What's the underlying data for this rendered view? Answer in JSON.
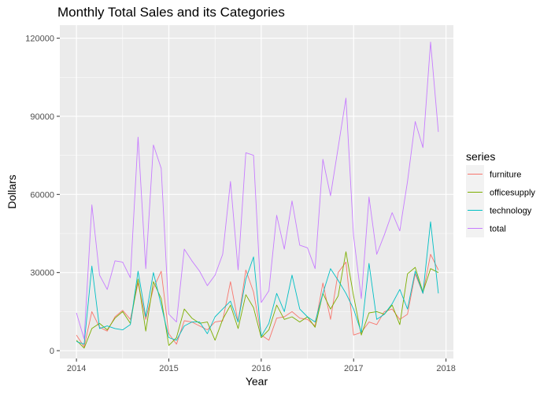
{
  "chart_data": {
    "type": "line",
    "title": "Monthly Total Sales and its Categories",
    "xlabel": "Year",
    "ylabel": "Dollars",
    "xlim": [
      2013.82,
      2018.08
    ],
    "ylim": [
      -3000,
      125000
    ],
    "x_ticks": [
      2014,
      2015,
      2016,
      2017,
      2018
    ],
    "y_ticks": [
      0,
      30000,
      60000,
      90000,
      120000
    ],
    "grid": true,
    "legend": {
      "title": "series",
      "placement": "right"
    },
    "x": [
      2014.0,
      2014.083,
      2014.167,
      2014.25,
      2014.333,
      2014.417,
      2014.5,
      2014.583,
      2014.667,
      2014.75,
      2014.833,
      2014.917,
      2015.0,
      2015.083,
      2015.167,
      2015.25,
      2015.333,
      2015.417,
      2015.5,
      2015.583,
      2015.667,
      2015.75,
      2015.833,
      2015.917,
      2016.0,
      2016.083,
      2016.167,
      2016.25,
      2016.333,
      2016.417,
      2016.5,
      2016.583,
      2016.667,
      2016.75,
      2016.833,
      2016.917,
      2017.0,
      2017.083,
      2017.167,
      2017.25,
      2017.333,
      2017.417,
      2017.5,
      2017.583,
      2017.667,
      2017.75,
      2017.833,
      2017.917
    ],
    "series": [
      {
        "name": "furniture",
        "color": "#F8766D",
        "values": [
          6000,
          1500,
          15000,
          9000,
          7500,
          13000,
          15500,
          12000,
          26000,
          12000,
          24000,
          30500,
          6500,
          2500,
          11500,
          11000,
          9500,
          8000,
          11000,
          11500,
          26500,
          11000,
          31000,
          22500,
          6000,
          4000,
          12500,
          13000,
          15000,
          12500,
          12000,
          9500,
          26000,
          12000,
          30000,
          34000,
          6000,
          7000,
          11000,
          10000,
          15000,
          16000,
          12000,
          14000,
          29500,
          22000,
          37000,
          31000
        ]
      },
      {
        "name": "officesupply",
        "color": "#7CAE00",
        "values": [
          4000,
          1000,
          8500,
          10500,
          8000,
          12500,
          15000,
          10500,
          27500,
          7500,
          26500,
          20000,
          2000,
          5000,
          16000,
          12500,
          10500,
          11000,
          4000,
          12000,
          17500,
          8500,
          21500,
          16500,
          5000,
          8000,
          17500,
          12000,
          13000,
          11000,
          13000,
          9000,
          22000,
          16000,
          21000,
          38000,
          21000,
          6000,
          14500,
          15000,
          14000,
          17500,
          10000,
          29500,
          32000,
          22500,
          31500,
          30000
        ]
      },
      {
        "name": "technology",
        "color": "#00BFC4",
        "values": [
          3500,
          2500,
          32500,
          8500,
          9500,
          8500,
          8000,
          10000,
          30500,
          13000,
          30000,
          17500,
          5000,
          4000,
          9500,
          11000,
          11000,
          6500,
          13000,
          16000,
          19000,
          11000,
          27500,
          36000,
          5500,
          10500,
          22000,
          15000,
          29000,
          16000,
          13000,
          11000,
          22000,
          31500,
          27000,
          22000,
          16000,
          7000,
          33500,
          12000,
          14000,
          18000,
          23500,
          16000,
          30500,
          22000,
          49500,
          22000
        ]
      },
      {
        "name": "total",
        "color": "#C77CFF",
        "values": [
          14500,
          4500,
          56000,
          29000,
          23500,
          34500,
          34000,
          28000,
          82000,
          31500,
          79000,
          70000,
          14000,
          11000,
          39000,
          34500,
          30500,
          25000,
          29000,
          37000,
          65000,
          31000,
          76000,
          75000,
          18500,
          23000,
          52000,
          39000,
          57500,
          40500,
          39500,
          31500,
          73500,
          59500,
          78000,
          97000,
          44000,
          20000,
          59000,
          37000,
          44500,
          53000,
          46000,
          65000,
          88000,
          78000,
          118500,
          84000
        ]
      }
    ]
  }
}
